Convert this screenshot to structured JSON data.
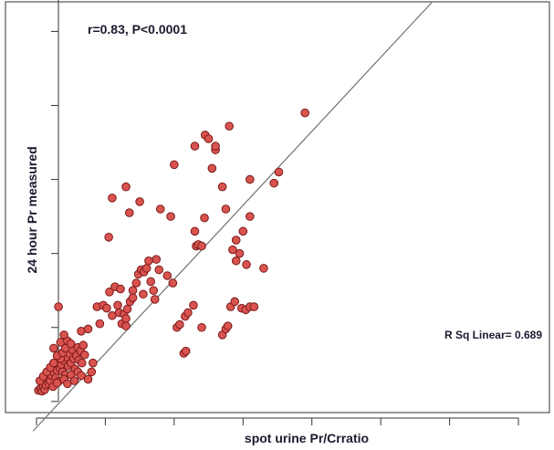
{
  "chart_data": {
    "type": "scatter",
    "xlabel": "spot urine Pr/Crratio",
    "ylabel": "24 hour Pr measured",
    "annotations": {
      "correlation": "r=0.83, P<0.0001",
      "r_squared": "R Sq Linear= 0.689"
    },
    "x_tick_count": 8,
    "y_tick_count": 7,
    "xlim": [
      -0.45,
      7.45
    ],
    "ylim": [
      -0.15,
      5.4
    ],
    "fit_line": {
      "intercept": -0.35,
      "slope": 1.0
    },
    "grid": false,
    "colors": {
      "point_fill": "#d9534f",
      "point_stroke": "#7a1a1a",
      "fit_line": "#707070",
      "text": "#1a1a2e"
    },
    "points": [
      [
        0.03,
        0.15
      ],
      [
        0.06,
        0.18
      ],
      [
        0.08,
        0.14
      ],
      [
        0.1,
        0.2
      ],
      [
        0.12,
        0.16
      ],
      [
        0.14,
        0.22
      ],
      [
        0.16,
        0.3
      ],
      [
        0.18,
        0.24
      ],
      [
        0.2,
        0.28
      ],
      [
        0.22,
        0.35
      ],
      [
        0.24,
        0.2
      ],
      [
        0.26,
        0.38
      ],
      [
        0.28,
        0.32
      ],
      [
        0.3,
        0.42
      ],
      [
        0.32,
        0.27
      ],
      [
        0.34,
        0.45
      ],
      [
        0.36,
        0.5
      ],
      [
        0.38,
        0.4
      ],
      [
        0.4,
        0.55
      ],
      [
        0.42,
        0.36
      ],
      [
        0.44,
        0.6
      ],
      [
        0.46,
        0.48
      ],
      [
        0.48,
        0.65
      ],
      [
        0.5,
        0.52
      ],
      [
        0.52,
        0.7
      ],
      [
        0.54,
        0.58
      ],
      [
        0.56,
        0.44
      ],
      [
        0.58,
        0.62
      ],
      [
        0.6,
        0.73
      ],
      [
        0.62,
        0.56
      ],
      [
        0.64,
        0.68
      ],
      [
        0.66,
        0.52
      ],
      [
        0.68,
        0.76
      ],
      [
        0.7,
        0.63
      ],
      [
        0.05,
        0.28
      ],
      [
        0.1,
        0.34
      ],
      [
        0.15,
        0.4
      ],
      [
        0.2,
        0.46
      ],
      [
        0.25,
        0.52
      ],
      [
        0.3,
        0.25
      ],
      [
        0.35,
        0.58
      ],
      [
        0.4,
        0.3
      ],
      [
        0.45,
        0.24
      ],
      [
        0.5,
        0.36
      ],
      [
        0.55,
        0.28
      ],
      [
        0.6,
        0.4
      ],
      [
        0.65,
        0.35
      ],
      [
        0.75,
        0.3
      ],
      [
        0.3,
        0.62
      ],
      [
        0.38,
        0.66
      ],
      [
        0.42,
        0.72
      ],
      [
        0.35,
        0.8
      ],
      [
        0.45,
        0.82
      ],
      [
        0.25,
        0.72
      ],
      [
        0.4,
        0.9
      ],
      [
        0.5,
        0.78
      ],
      [
        0.32,
        1.28
      ],
      [
        0.65,
        0.95
      ],
      [
        0.75,
        0.98
      ],
      [
        0.8,
        0.4
      ],
      [
        0.82,
        0.52
      ],
      [
        0.92,
        1.05
      ],
      [
        0.88,
        1.28
      ],
      [
        0.97,
        1.3
      ],
      [
        1.02,
        1.26
      ],
      [
        1.06,
        1.48
      ],
      [
        1.14,
        1.55
      ],
      [
        1.2,
        1.2
      ],
      [
        1.24,
        1.05
      ],
      [
        1.27,
        1.18
      ],
      [
        1.3,
        1.12
      ],
      [
        1.32,
        1.25
      ],
      [
        1.18,
        1.3
      ],
      [
        1.22,
        1.52
      ],
      [
        1.36,
        1.35
      ],
      [
        1.4,
        1.5
      ],
      [
        1.45,
        1.6
      ],
      [
        1.48,
        1.72
      ],
      [
        1.52,
        1.78
      ],
      [
        1.56,
        1.75
      ],
      [
        1.6,
        1.8
      ],
      [
        1.66,
        1.62
      ],
      [
        1.7,
        1.5
      ],
      [
        1.63,
        1.9
      ],
      [
        1.3,
        1.02
      ],
      [
        1.1,
        1.16
      ],
      [
        1.55,
        1.45
      ],
      [
        1.72,
        1.38
      ],
      [
        1.74,
        1.92
      ],
      [
        1.78,
        1.78
      ],
      [
        1.4,
        1.4
      ],
      [
        1.9,
        1.7
      ],
      [
        1.98,
        1.6
      ],
      [
        2.04,
        1.0
      ],
      [
        2.08,
        1.04
      ],
      [
        2.16,
        1.15
      ],
      [
        2.2,
        1.2
      ],
      [
        2.28,
        1.3
      ],
      [
        2.32,
        2.1
      ],
      [
        2.14,
        0.65
      ],
      [
        2.17,
        0.68
      ],
      [
        2.4,
        1.0
      ],
      [
        2.44,
        2.48
      ],
      [
        1.05,
        2.22
      ],
      [
        2.7,
        0.9
      ],
      [
        2.75,
        0.98
      ],
      [
        2.78,
        1.02
      ],
      [
        2.82,
        1.28
      ],
      [
        2.88,
        1.35
      ],
      [
        2.98,
        1.26
      ],
      [
        3.04,
        1.24
      ],
      [
        3.1,
        1.28
      ],
      [
        3.16,
        1.28
      ],
      [
        3.3,
        1.8
      ],
      [
        3.52,
        3.1
      ],
      [
        2.85,
        2.05
      ],
      [
        2.9,
        2.18
      ],
      [
        2.3,
        2.3
      ],
      [
        2.35,
        2.12
      ],
      [
        2.9,
        1.9
      ],
      [
        2.95,
        2.0
      ],
      [
        3.0,
        2.3
      ],
      [
        3.05,
        1.85
      ],
      [
        1.95,
        2.5
      ],
      [
        1.5,
        2.7
      ],
      [
        3.1,
        3.0
      ],
      [
        1.1,
        2.75
      ],
      [
        1.3,
        2.9
      ],
      [
        1.8,
        2.6
      ],
      [
        2.0,
        3.2
      ],
      [
        2.3,
        3.45
      ],
      [
        2.45,
        3.6
      ],
      [
        2.5,
        3.55
      ],
      [
        2.6,
        3.4
      ],
      [
        1.35,
        2.55
      ],
      [
        2.8,
        3.72
      ],
      [
        2.6,
        3.45
      ],
      [
        2.55,
        3.15
      ],
      [
        3.45,
        2.95
      ],
      [
        2.7,
        2.9
      ],
      [
        2.75,
        2.6
      ],
      [
        3.1,
        2.5
      ],
      [
        2.4,
        2.1
      ],
      [
        3.9,
        3.9
      ]
    ]
  }
}
